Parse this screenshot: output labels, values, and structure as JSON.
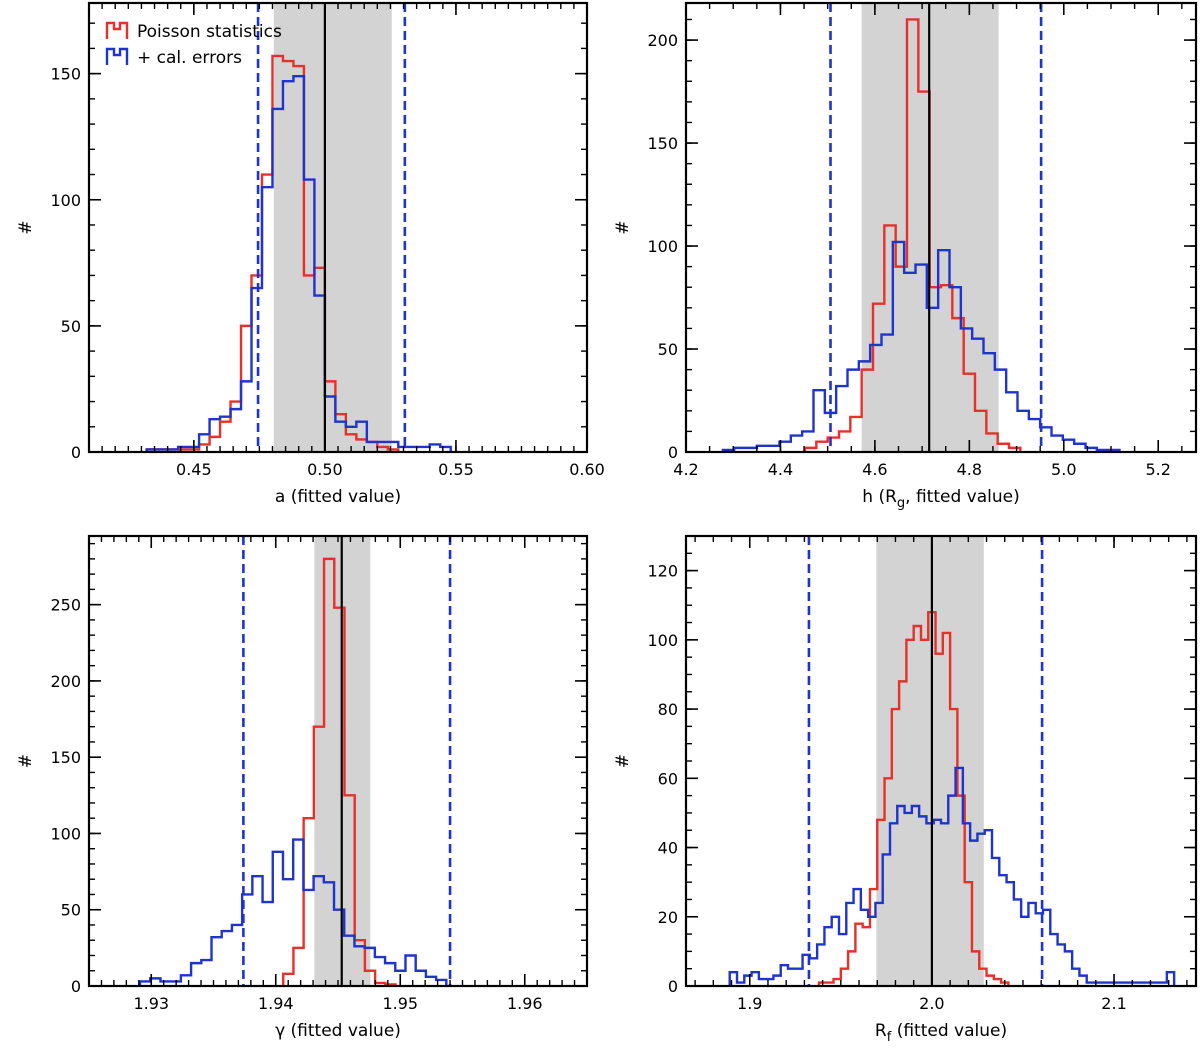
{
  "colors": {
    "poisson": "#e8302a",
    "calibration": "#1f34cc",
    "range_band": "#d3d3d3",
    "dashed_limits": "#1f34cc",
    "best_fit_line": "#000000"
  },
  "legend": {
    "placement": "top-left",
    "items": [
      "Poisson statistics",
      "+ cal. errors"
    ]
  },
  "chart_data": [
    {
      "type": "histogram",
      "xlabel": "a (fitted value)",
      "ylabel": "#",
      "xlim": [
        0.41,
        0.6
      ],
      "ylim": [
        0,
        178
      ],
      "xticks": [
        0.45,
        0.5,
        0.55,
        0.6
      ],
      "xtick_labels": [
        "0.45",
        "0.50",
        "0.55",
        "0.60"
      ],
      "yticks": [
        0,
        50,
        100,
        150
      ],
      "ytick_labels": [
        "0",
        "50",
        "100",
        "150"
      ],
      "xminor": 0.005,
      "yminor": 10,
      "bin_width": 0.004,
      "band": [
        0.4805,
        0.5255
      ],
      "best_fit": 0.5,
      "dashed": [
        0.4745,
        0.5305
      ],
      "legend": true,
      "series": [
        {
          "name": "Poisson statistics",
          "bin_start": 0.432,
          "counts": [
            1,
            1,
            1,
            1,
            1,
            3,
            6,
            12,
            20,
            50,
            70,
            110,
            157,
            155,
            153,
            70,
            73,
            28,
            15,
            7,
            5,
            4,
            2,
            1
          ]
        },
        {
          "name": "+ cal. errors",
          "bin_start": 0.432,
          "counts": [
            1,
            1,
            1,
            2,
            2,
            7,
            13,
            14,
            17,
            28,
            65,
            105,
            136,
            147,
            149,
            108,
            62,
            22,
            12,
            10,
            12,
            4,
            4,
            4,
            2,
            2,
            2,
            3,
            2
          ]
        }
      ]
    },
    {
      "type": "histogram",
      "xlabel": "h (R_g, fitted value)",
      "ylabel": "#",
      "xlim": [
        4.2,
        5.28
      ],
      "ylim": [
        0,
        218
      ],
      "xticks": [
        4.2,
        4.4,
        4.6,
        4.8,
        5.0,
        5.2
      ],
      "xtick_labels": [
        "4.2",
        "4.4",
        "4.6",
        "4.8",
        "5.0",
        "5.2"
      ],
      "yticks": [
        0,
        50,
        100,
        150,
        200
      ],
      "ytick_labels": [
        "0",
        "50",
        "100",
        "150",
        "200"
      ],
      "xminor": 0.05,
      "yminor": 10,
      "bin_width": 0.024,
      "band": [
        4.572,
        4.862
      ],
      "best_fit": 4.715,
      "dashed": [
        4.506,
        4.952
      ],
      "legend": false,
      "series": [
        {
          "name": "Poisson statistics",
          "bin_start": 4.452,
          "counts": [
            2,
            5,
            7,
            10,
            17,
            40,
            72,
            110,
            90,
            210,
            175,
            80,
            81,
            65,
            38,
            20,
            9,
            4,
            2
          ]
        },
        {
          "name": "+ cal. errors",
          "bin_start": 4.278,
          "counts": [
            1,
            2,
            2,
            3,
            3,
            5,
            8,
            10,
            30,
            19,
            32,
            40,
            44,
            52,
            57,
            102,
            87,
            91,
            70,
            98,
            80,
            60,
            55,
            48,
            40,
            29,
            20,
            16,
            12,
            8,
            6,
            4,
            2,
            1,
            1
          ]
        }
      ]
    },
    {
      "type": "histogram",
      "xlabel": "γ (fitted value)",
      "ylabel": "#",
      "xlim": [
        1.925,
        1.965
      ],
      "ylim": [
        0,
        295
      ],
      "xticks": [
        1.93,
        1.94,
        1.95,
        1.96
      ],
      "xtick_labels": [
        "1.93",
        "1.94",
        "1.95",
        "1.96"
      ],
      "yticks": [
        0,
        50,
        100,
        150,
        200,
        250
      ],
      "ytick_labels": [
        "0",
        "50",
        "100",
        "150",
        "200",
        "250"
      ],
      "xminor": 0.001,
      "yminor": 10,
      "bin_width": 0.00082,
      "band": [
        1.9431,
        1.9476
      ],
      "best_fit": 1.9453,
      "dashed": [
        1.9374,
        1.954
      ],
      "legend": false,
      "series": [
        {
          "name": "Poisson statistics",
          "bin_start": 1.9406,
          "counts": [
            8,
            25,
            110,
            170,
            280,
            248,
            125,
            30,
            10,
            2,
            1
          ]
        },
        {
          "name": "+ cal. errors",
          "bin_start": 1.9291,
          "counts": [
            3,
            5,
            3,
            3,
            7,
            15,
            17,
            32,
            36,
            40,
            60,
            72,
            55,
            88,
            70,
            96,
            63,
            72,
            68,
            50,
            33,
            26,
            25,
            19,
            15,
            10,
            20,
            10,
            6,
            4
          ]
        }
      ]
    },
    {
      "type": "histogram",
      "xlabel": "R_f  (fitted value)",
      "ylabel": "#",
      "xlim": [
        1.865,
        2.145
      ],
      "ylim": [
        0,
        130
      ],
      "xticks": [
        1.9,
        2.0,
        2.1
      ],
      "xtick_labels": [
        "1.9",
        "2.0",
        "2.1"
      ],
      "yticks": [
        0,
        20,
        40,
        60,
        80,
        100,
        120
      ],
      "ytick_labels": [
        "0",
        "20",
        "40",
        "60",
        "80",
        "100",
        "120"
      ],
      "xminor": 0.01,
      "yminor": 5,
      "bin_width": 0.004,
      "band": [
        1.9695,
        2.0285
      ],
      "best_fit": 2.0,
      "dashed": [
        1.9325,
        2.0605
      ],
      "legend": false,
      "series": [
        {
          "name": "Poisson statistics",
          "bin_start": 1.938,
          "counts": [
            1,
            1,
            2,
            5,
            10,
            18,
            17,
            28,
            48,
            60,
            80,
            88,
            100,
            104,
            100,
            108,
            96,
            102,
            80,
            55,
            30,
            10,
            5,
            3,
            2,
            1
          ]
        },
        {
          "name": "+ cal. errors",
          "bin_start": 1.889,
          "counts": [
            4,
            1,
            3,
            4,
            2,
            2,
            3,
            6,
            5,
            5,
            9,
            8,
            12,
            17,
            20,
            15,
            24,
            28,
            22,
            20,
            24,
            38,
            47,
            52,
            50,
            52,
            49,
            47,
            48,
            47,
            55,
            63,
            47,
            42,
            44,
            45,
            37,
            32,
            30,
            25,
            20,
            24,
            21,
            22,
            15,
            12,
            10,
            5,
            3,
            1,
            1,
            1,
            1,
            1,
            1,
            1,
            1,
            1,
            1,
            1,
            4
          ]
        }
      ]
    }
  ]
}
